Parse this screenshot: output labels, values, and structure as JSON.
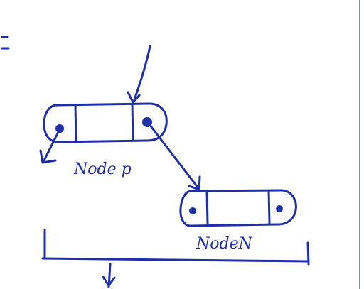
{
  "diagram": {
    "nodes": [
      {
        "id": "node-p",
        "label": "Node p"
      },
      {
        "id": "node-n",
        "label": "NodeN"
      }
    ],
    "ink_color": "#1f2fa6",
    "page_color": "#ffffff"
  }
}
